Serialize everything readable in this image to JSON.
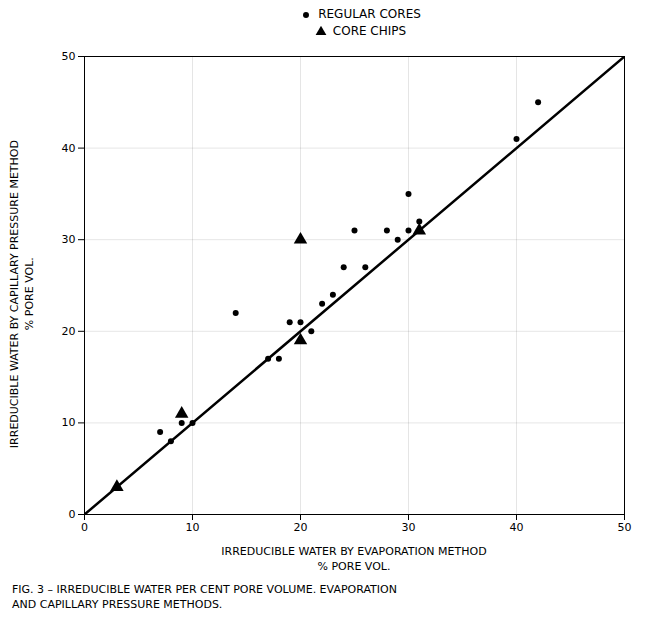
{
  "chart_data": {
    "type": "scatter",
    "xlabel": "IRREDUCIBLE WATER BY EVAPORATION METHOD\n% PORE VOL.",
    "ylabel": "IRREDUCIBLE WATER BY CAPILLARY PRESSURE METHOD\n% PORE VOL.",
    "caption": "FIG. 3 – IRREDUCIBLE WATER PER CENT PORE VOLUME. EVAPORATION\nAND CAPILLARY PRESSURE METHODS.",
    "xlim": [
      0,
      50
    ],
    "ylim": [
      0,
      50
    ],
    "xticks": [
      0,
      10,
      20,
      30,
      40,
      50
    ],
    "yticks": [
      0,
      10,
      20,
      30,
      40,
      50
    ],
    "grid": true,
    "series": [
      {
        "type": "line",
        "color": "#000000",
        "x": [
          0,
          50
        ],
        "values": [
          0,
          50
        ]
      },
      {
        "name": "REGULAR CORES",
        "type": "scatter",
        "marker": "circle",
        "color": "#000000",
        "x": [
          7,
          8,
          9,
          10,
          14,
          17,
          18,
          19,
          20,
          21,
          22,
          23,
          24,
          25,
          26,
          28,
          29,
          30,
          30,
          31,
          40,
          42
        ],
        "values": [
          9,
          8,
          10,
          10,
          22,
          17,
          17,
          21,
          21,
          20,
          23,
          24,
          27,
          31,
          27,
          31,
          30,
          31,
          35,
          32,
          41,
          45
        ]
      },
      {
        "name": "CORE CHIPS",
        "type": "scatter",
        "marker": "triangle",
        "color": "#000000",
        "x": [
          3,
          9,
          20,
          20,
          31
        ],
        "values": [
          3,
          11,
          19,
          30,
          31
        ]
      }
    ]
  }
}
